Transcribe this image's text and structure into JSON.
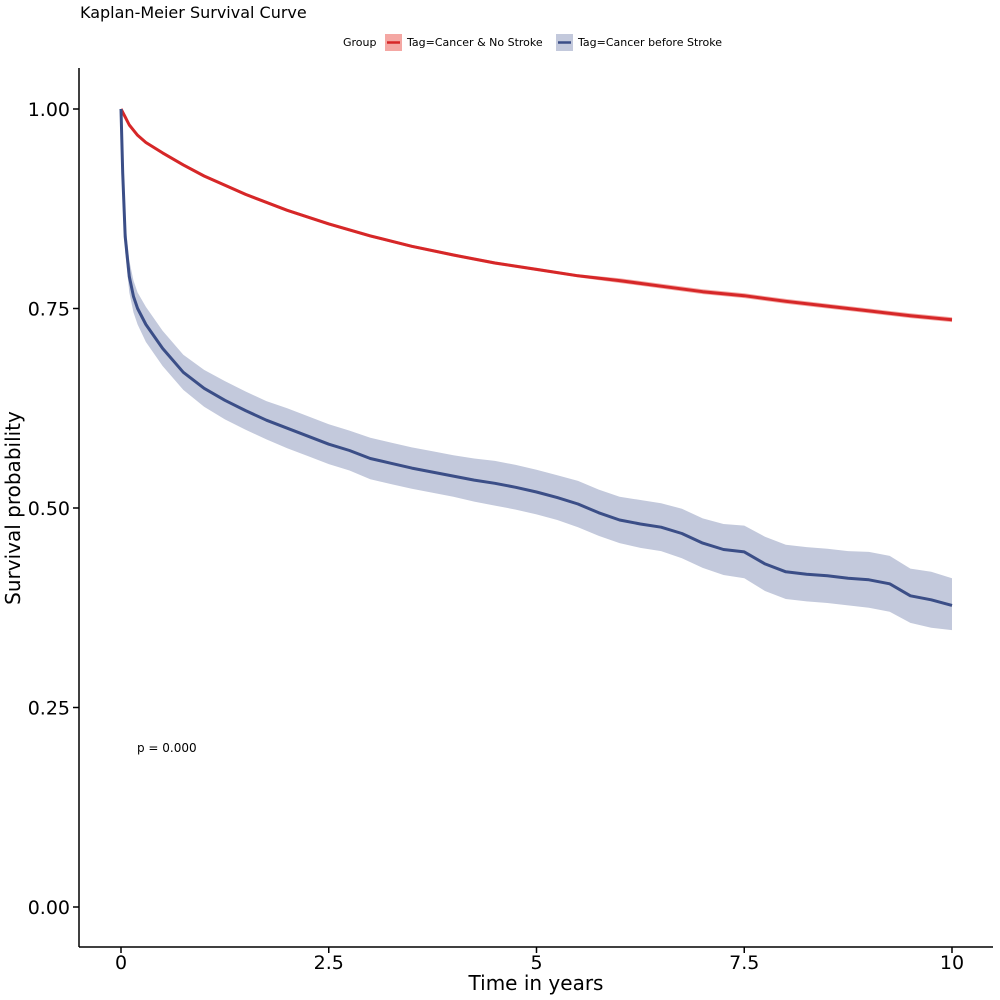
{
  "chart_data": {
    "type": "line",
    "subtype": "kaplan-meier",
    "title": "Kaplan-Meier Survival Curve",
    "xlabel": "Time in years",
    "ylabel": "Survival probability",
    "xlim": [
      0,
      10
    ],
    "ylim": [
      0,
      1
    ],
    "x_ticks": [
      0,
      2.5,
      5,
      7.5,
      10
    ],
    "x_tick_labels": [
      "0",
      "2.5",
      "5",
      "7.5",
      "10"
    ],
    "y_ticks": [
      0,
      0.25,
      0.5,
      0.75,
      1
    ],
    "y_tick_labels": [
      "0.00",
      "0.25",
      "0.50",
      "0.75",
      "1.00"
    ],
    "grid": false,
    "legend": {
      "title": "Group",
      "position": "top"
    },
    "annotation": "p = 0.000",
    "series": [
      {
        "name": "Tag=Cancer & No Stroke",
        "color": "#d62728",
        "band_color": "#f4a7a3",
        "x": [
          0,
          0.05,
          0.1,
          0.2,
          0.3,
          0.5,
          0.75,
          1,
          1.5,
          2,
          2.5,
          3,
          3.5,
          4,
          4.5,
          5,
          5.5,
          6,
          6.5,
          7,
          7.5,
          8,
          8.5,
          9,
          9.5,
          10
        ],
        "y": [
          1.0,
          0.99,
          0.98,
          0.967,
          0.958,
          0.945,
          0.93,
          0.916,
          0.893,
          0.873,
          0.856,
          0.841,
          0.828,
          0.817,
          0.807,
          0.799,
          0.791,
          0.785,
          0.778,
          0.771,
          0.766,
          0.759,
          0.753,
          0.747,
          0.741,
          0.736
        ],
        "lower": [
          1.0,
          0.988,
          0.978,
          0.965,
          0.956,
          0.943,
          0.928,
          0.914,
          0.891,
          0.871,
          0.854,
          0.839,
          0.826,
          0.815,
          0.805,
          0.797,
          0.789,
          0.782,
          0.775,
          0.768,
          0.763,
          0.756,
          0.75,
          0.744,
          0.738,
          0.733
        ],
        "upper": [
          1.0,
          0.992,
          0.982,
          0.969,
          0.96,
          0.947,
          0.932,
          0.918,
          0.895,
          0.875,
          0.858,
          0.843,
          0.83,
          0.819,
          0.809,
          0.801,
          0.793,
          0.788,
          0.781,
          0.774,
          0.769,
          0.762,
          0.756,
          0.75,
          0.744,
          0.739
        ]
      },
      {
        "name": "Tag=Cancer before Stroke",
        "color": "#3b4e87",
        "band_color": "#c3c9dc",
        "x": [
          0,
          0.02,
          0.05,
          0.1,
          0.15,
          0.2,
          0.3,
          0.5,
          0.75,
          1,
          1.25,
          1.5,
          1.75,
          2,
          2.25,
          2.5,
          2.75,
          3,
          3.25,
          3.5,
          3.75,
          4,
          4.25,
          4.5,
          4.75,
          5,
          5.25,
          5.5,
          5.75,
          6,
          6.25,
          6.5,
          6.75,
          7,
          7.25,
          7.5,
          7.75,
          8,
          8.25,
          8.5,
          8.75,
          9,
          9.25,
          9.5,
          9.75,
          10
        ],
        "y": [
          1.0,
          0.92,
          0.84,
          0.79,
          0.765,
          0.75,
          0.73,
          0.7,
          0.67,
          0.65,
          0.635,
          0.622,
          0.61,
          0.6,
          0.59,
          0.58,
          0.572,
          0.562,
          0.556,
          0.55,
          0.545,
          0.54,
          0.535,
          0.531,
          0.526,
          0.52,
          0.513,
          0.505,
          0.494,
          0.485,
          0.48,
          0.476,
          0.468,
          0.456,
          0.448,
          0.445,
          0.43,
          0.42,
          0.417,
          0.415,
          0.412,
          0.41,
          0.405,
          0.39,
          0.385,
          0.378
        ],
        "lower": [
          1.0,
          0.9,
          0.82,
          0.77,
          0.745,
          0.73,
          0.708,
          0.678,
          0.648,
          0.627,
          0.611,
          0.598,
          0.586,
          0.575,
          0.565,
          0.555,
          0.547,
          0.536,
          0.53,
          0.524,
          0.519,
          0.514,
          0.508,
          0.503,
          0.498,
          0.492,
          0.485,
          0.476,
          0.465,
          0.456,
          0.45,
          0.446,
          0.437,
          0.425,
          0.416,
          0.412,
          0.396,
          0.386,
          0.383,
          0.381,
          0.378,
          0.375,
          0.37,
          0.356,
          0.35,
          0.347
        ],
        "upper": [
          1.0,
          0.94,
          0.86,
          0.81,
          0.785,
          0.77,
          0.752,
          0.722,
          0.692,
          0.673,
          0.659,
          0.646,
          0.634,
          0.625,
          0.615,
          0.605,
          0.597,
          0.588,
          0.582,
          0.576,
          0.571,
          0.566,
          0.562,
          0.559,
          0.554,
          0.548,
          0.541,
          0.534,
          0.523,
          0.514,
          0.51,
          0.506,
          0.499,
          0.487,
          0.48,
          0.478,
          0.464,
          0.454,
          0.451,
          0.449,
          0.446,
          0.445,
          0.44,
          0.424,
          0.42,
          0.412
        ]
      }
    ]
  }
}
